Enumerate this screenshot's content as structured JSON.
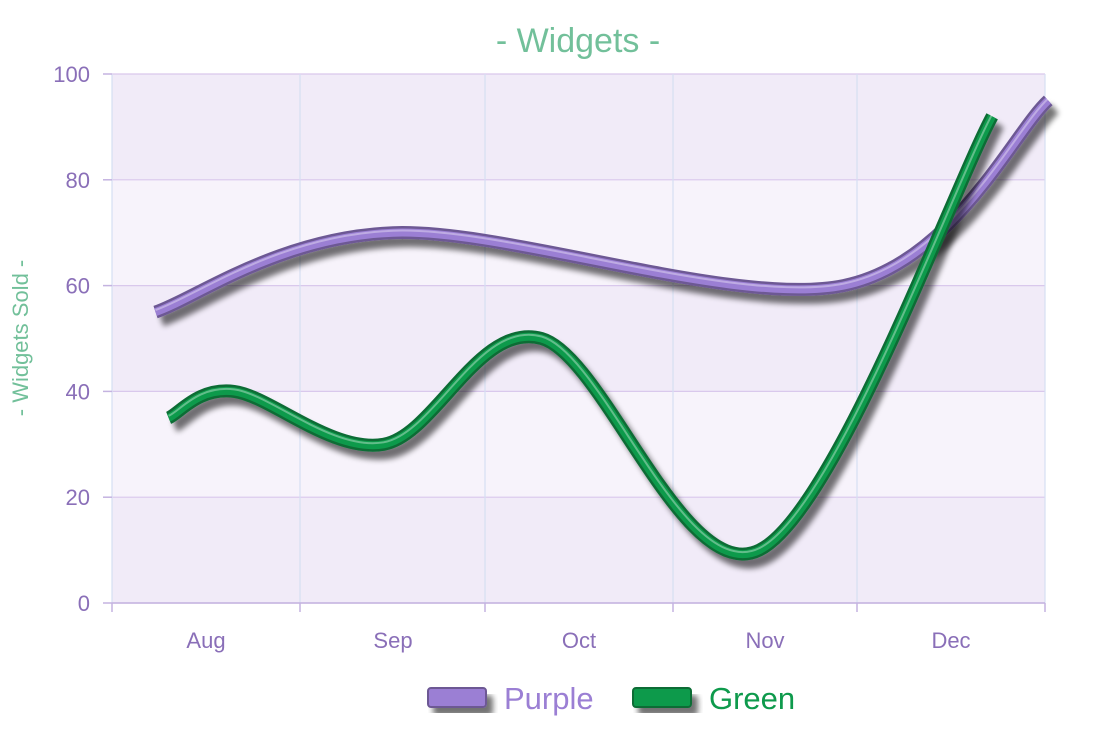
{
  "chart_data": {
    "type": "line",
    "title": "- Widgets -",
    "xlabel": "",
    "ylabel": "- Widgets Sold -",
    "categories": [
      "Aug",
      "Sep",
      "Oct",
      "Nov",
      "Dec"
    ],
    "ylim": [
      0,
      100
    ],
    "yticks": [
      "0",
      "20",
      "40",
      "60",
      "80",
      "100"
    ],
    "grid": true,
    "legend_position": "bottom",
    "series": [
      {
        "name": "Purple",
        "color": "#9b7fd4",
        "points": [
          {
            "x": "Aug",
            "y": 55
          },
          {
            "x": "Sep",
            "y": 70
          },
          {
            "x": "Nov",
            "y": 60
          },
          {
            "x": "Dec",
            "y": 95
          }
        ]
      },
      {
        "name": "Green",
        "color": "#0e9a4c",
        "points": [
          {
            "x": "Aug",
            "y": 35
          },
          {
            "x": "Aug",
            "y": 40
          },
          {
            "x": "Sep",
            "y": 30
          },
          {
            "x": "Oct",
            "y": 50
          },
          {
            "x": "Nov",
            "y": 10
          },
          {
            "x": "Dec",
            "y": 92
          }
        ]
      }
    ],
    "colors": {
      "title": "#72c09a",
      "axis_text": "#8a6fb8",
      "plot_band_light": "#f7f3fb",
      "plot_band_dark": "#f1ebf8",
      "grid_horizontal": "#d9c8ec",
      "grid_vertical": "#d6dff2"
    }
  }
}
